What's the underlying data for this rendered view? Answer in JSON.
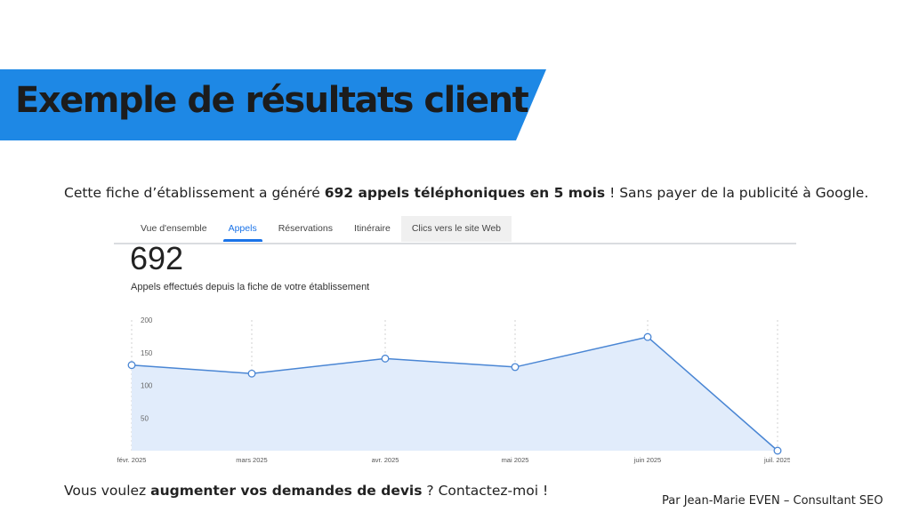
{
  "banner": {
    "title": "Exemple de résultats client",
    "color": "#1e88e5"
  },
  "intro": {
    "before": "Cette fiche d’établissement a généré ",
    "bold": "692 appels téléphoniques en 5 mois",
    "after": " ! Sans payer de la publicité à Google."
  },
  "tabs": [
    {
      "label": "Vue d'ensemble"
    },
    {
      "label": "Appels"
    },
    {
      "label": "Réservations"
    },
    {
      "label": "Itinéraire"
    },
    {
      "label": "Clics vers le site Web"
    }
  ],
  "metric": {
    "value": "692",
    "label": "Appels effectués depuis la fiche de votre établissement"
  },
  "chart_data": {
    "type": "area",
    "x": [
      "févr. 2025",
      "mars 2025",
      "avr. 2025",
      "mai 2025",
      "juin 2025",
      "juil. 2025"
    ],
    "series": [
      {
        "values": [
          131,
          118,
          141,
          128,
          174,
          0
        ]
      }
    ],
    "yticks": [
      200,
      150,
      100,
      50
    ],
    "ylim": [
      0,
      200
    ],
    "grid": "vertical dashed",
    "line_color": "#4a86d4",
    "fill_color": "#e1ecfb"
  },
  "footer": {
    "before": "Vous voulez ",
    "bold": "augmenter vos demandes de devis",
    "after": " ? Contactez-moi !",
    "author": "Par Jean-Marie EVEN – Consultant SEO"
  }
}
